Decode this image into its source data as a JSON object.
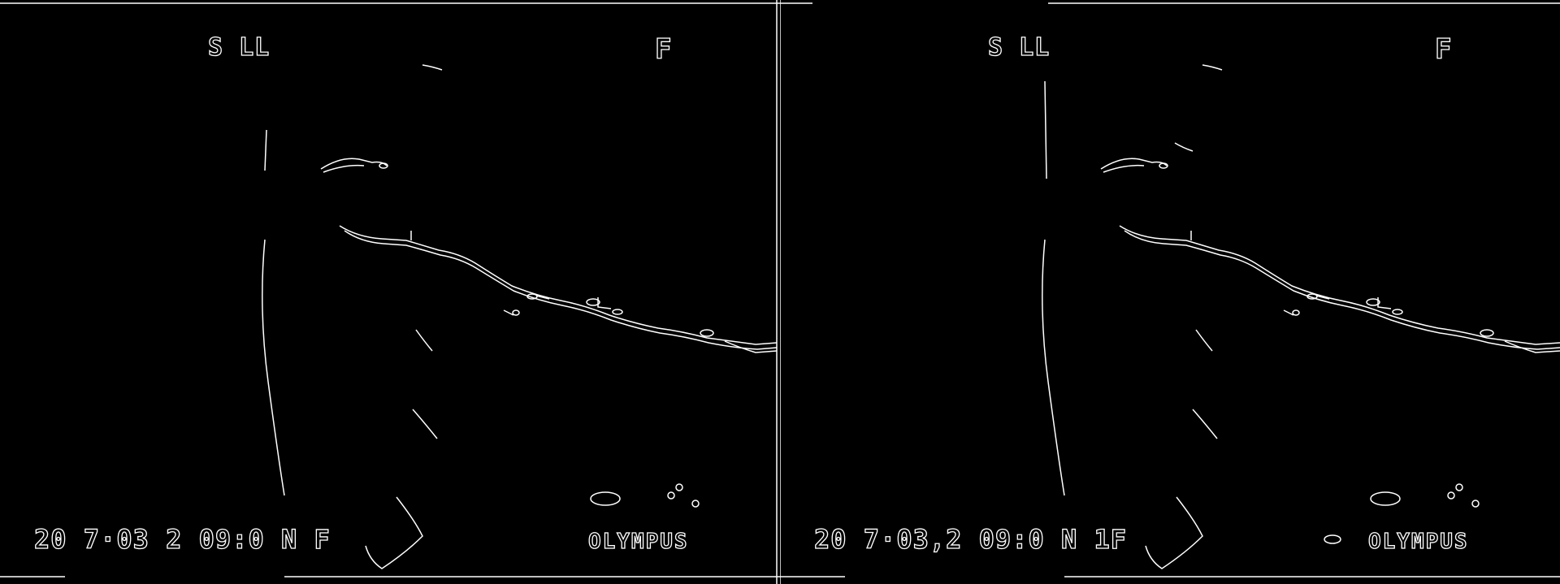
{
  "image": {
    "description_type": "edge-detected dashcam frames",
    "background_color": "#000000",
    "edge_color": "#ffffff"
  },
  "panels": [
    {
      "mode_label": "S  LL",
      "flag_label": "F",
      "timestamp": "20 7·03 2  09:0  N   F",
      "brand": "OLYMPUS"
    },
    {
      "mode_label": "S  LL",
      "flag_label": "F",
      "timestamp": "20 7·03,2  09:0  N   1F",
      "brand": "OLYMPUS"
    }
  ]
}
